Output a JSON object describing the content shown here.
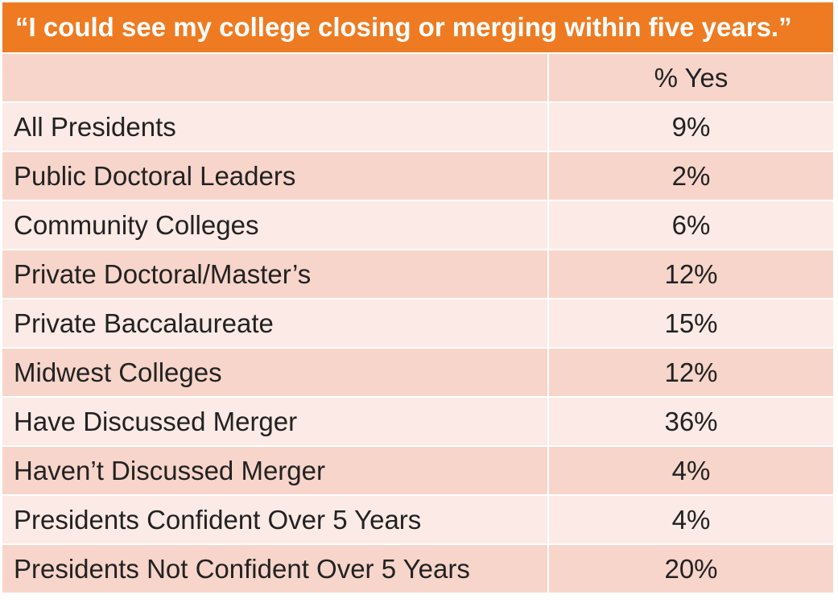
{
  "chart_data": {
    "type": "table",
    "title": "“I could see my college closing or merging within five years.”",
    "columns": [
      "",
      "% Yes"
    ],
    "rows": [
      {
        "label": "All Presidents",
        "value": "9%"
      },
      {
        "label": "Public Doctoral Leaders",
        "value": "2%"
      },
      {
        "label": "Community Colleges",
        "value": "6%"
      },
      {
        "label": "Private Doctoral/Master’s",
        "value": "12%"
      },
      {
        "label": "Private Baccalaureate",
        "value": "15%"
      },
      {
        "label": "Midwest Colleges",
        "value": "12%"
      },
      {
        "label": "Have Discussed Merger",
        "value": "36%"
      },
      {
        "label": "Haven’t Discussed Merger",
        "value": "4%"
      },
      {
        "label": "Presidents Confident Over 5 Years",
        "value": "4%"
      },
      {
        "label": "Presidents Not Confident Over 5 Years",
        "value": "20%"
      }
    ]
  },
  "colors": {
    "header_bar": "#EE7B22",
    "row_dark": "#F7D5CB",
    "row_light": "#FBEAE5",
    "text": "#222222"
  }
}
